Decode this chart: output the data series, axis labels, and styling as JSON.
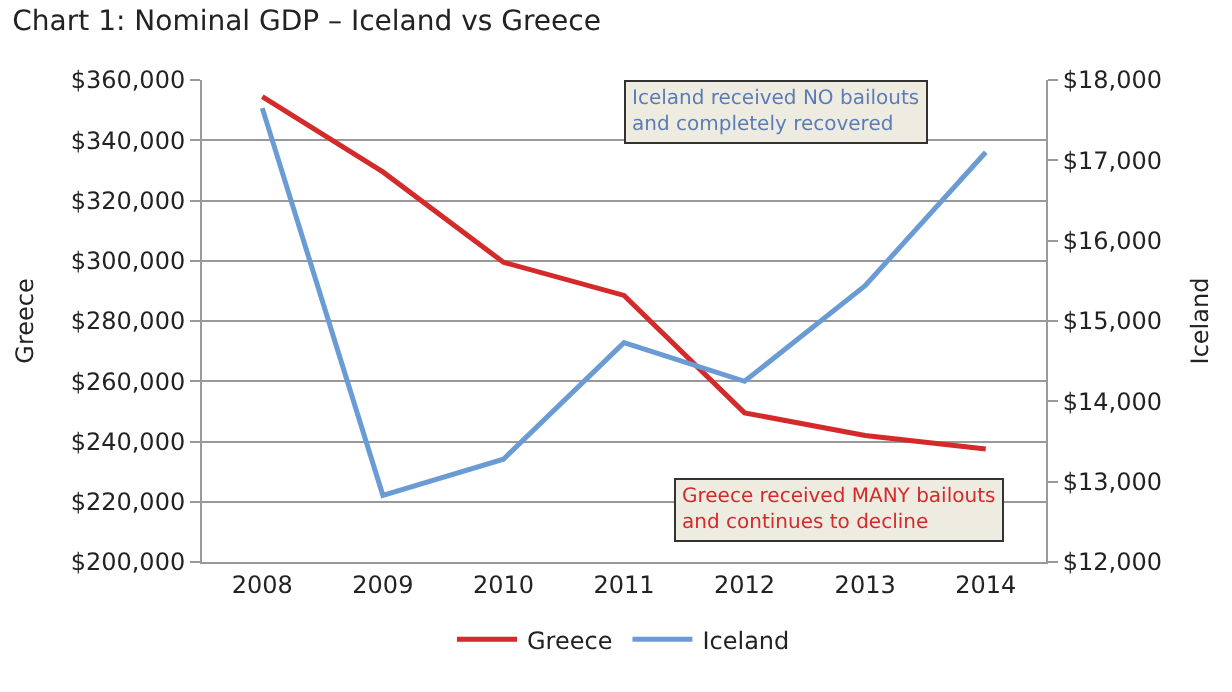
{
  "chart_data": {
    "type": "line",
    "title": "Chart 1: Nominal GDP – Iceland vs Greece",
    "categories": [
      "2008",
      "2009",
      "2010",
      "2011",
      "2012",
      "2013",
      "2014"
    ],
    "series": [
      {
        "name": "Greece",
        "color": "#d42a2a",
        "values": [
          354500,
          329500,
          299500,
          288500,
          249500,
          242000,
          237500
        ]
      },
      {
        "name": "Iceland",
        "color": "#6a9bd4",
        "axis": "y2",
        "values": [
          17650,
          12830,
          13280,
          14730,
          14250,
          15440,
          17100
        ]
      }
    ],
    "ylabel": "Greece",
    "y2label": "Iceland",
    "ylim": [
      200000,
      360000
    ],
    "yticks": [
      {
        "value": 200000,
        "label": "$200,000"
      },
      {
        "value": 220000,
        "label": "$220,000"
      },
      {
        "value": 240000,
        "label": "$240,000"
      },
      {
        "value": 260000,
        "label": "$260,000"
      },
      {
        "value": 280000,
        "label": "$280,000"
      },
      {
        "value": 300000,
        "label": "$300,000"
      },
      {
        "value": 320000,
        "label": "$320,000"
      },
      {
        "value": 340000,
        "label": "$340,000"
      },
      {
        "value": 360000,
        "label": "$360,000"
      }
    ],
    "y2lim": [
      12000,
      18000
    ],
    "y2ticks": [
      {
        "value": 12000,
        "label": "$12,000"
      },
      {
        "value": 13000,
        "label": "$13,000"
      },
      {
        "value": 14000,
        "label": "$14,000"
      },
      {
        "value": 15000,
        "label": "$15,000"
      },
      {
        "value": 16000,
        "label": "$16,000"
      },
      {
        "value": 17000,
        "label": "$17,000"
      },
      {
        "value": 18000,
        "label": "$18,000"
      }
    ],
    "annotations": [
      "Iceland received NO bailouts\nand completely recovered",
      "Greece received MANY bailouts\nand continues to decline"
    ],
    "grid": "y",
    "legend": "bottom",
    "marker": "none",
    "line_style": "solid"
  }
}
